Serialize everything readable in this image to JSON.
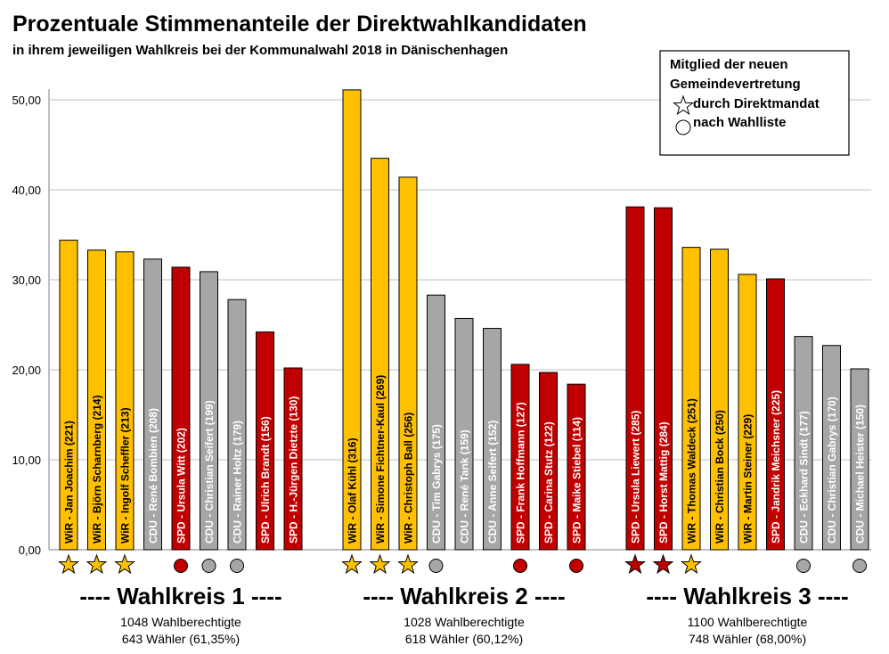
{
  "chart_data": {
    "type": "bar",
    "title": "Prozentuale Stimmenanteile der Direktwahlkandidaten",
    "subtitle": "in ihrem jeweiligen Wahlkreis bei der Kommunalwahl  2018 in Dänischenhagen",
    "ylim": [
      0,
      50
    ],
    "yticks": [
      "0,00",
      "10,00",
      "20,00",
      "30,00",
      "40,00",
      "50,00"
    ],
    "grid": true,
    "legend": {
      "position": "top-right",
      "title_line1": "Mitglied der neuen",
      "title_line2": "Gemeindevertretung",
      "star_label": "durch Direktmandat",
      "circle_label": "nach Wahlliste"
    },
    "party_colors": {
      "WiR": "#FFC000",
      "CDU": "#A6A6A6",
      "SPD": "#C00000"
    },
    "marker_colors": {
      "WiR": "#FFC000",
      "CDU": "#A6A6A6",
      "SPD": "#C00000"
    },
    "districts": [
      {
        "heading": "---- Wahlkreis 1 ----",
        "line1": "1048 Wahlberechtigte",
        "line2": "643 Wähler (61,35%)",
        "bars": [
          {
            "label": "WiR - Jan Joachim (221)",
            "party": "WiR",
            "value": 34.4,
            "marker": "star"
          },
          {
            "label": "WiR - Björn Scharnberg (214)",
            "party": "WiR",
            "value": 33.3,
            "marker": "star"
          },
          {
            "label": "WiR - Ingolf Scheffler (213)",
            "party": "WiR",
            "value": 33.1,
            "marker": "star"
          },
          {
            "label": "CDU - René Bombien (208)",
            "party": "CDU",
            "value": 32.3,
            "marker": "none"
          },
          {
            "label": "SPD - Ursula Witt (202)",
            "party": "SPD",
            "value": 31.4,
            "marker": "circle"
          },
          {
            "label": "CDU - Christian Seifert (199)",
            "party": "CDU",
            "value": 30.9,
            "marker": "circle"
          },
          {
            "label": "CDU - Rainer Holtz (179)",
            "party": "CDU",
            "value": 27.8,
            "marker": "circle"
          },
          {
            "label": "SPD - Ulrich Brandt (156)",
            "party": "SPD",
            "value": 24.2,
            "marker": "none"
          },
          {
            "label": "SPD - H.-Jürgen Dietzte (130)",
            "party": "SPD",
            "value": 20.2,
            "marker": "none"
          }
        ]
      },
      {
        "heading": "---- Wahlkreis 2 ----",
        "line1": "1028 Wahlberechtigte",
        "line2": "618 Wähler (60,12%)",
        "bars": [
          {
            "label": "WiR - Olaf Kühl (316)",
            "party": "WiR",
            "value": 51.1,
            "marker": "star"
          },
          {
            "label": "WiR - Simone Fichtner-Kaul (269)",
            "party": "WiR",
            "value": 43.5,
            "marker": "star"
          },
          {
            "label": "WiR - Christoph Ball (256)",
            "party": "WiR",
            "value": 41.4,
            "marker": "star"
          },
          {
            "label": "CDU - Tim Gabrys (175)",
            "party": "CDU",
            "value": 28.3,
            "marker": "circle"
          },
          {
            "label": "CDU - René Tank (159)",
            "party": "CDU",
            "value": 25.7,
            "marker": "none"
          },
          {
            "label": "CDU - Anne Seifert (152)",
            "party": "CDU",
            "value": 24.6,
            "marker": "none"
          },
          {
            "label": "SPD - Frank Hoffmann (127)",
            "party": "SPD",
            "value": 20.6,
            "marker": "circle"
          },
          {
            "label": "SPD - Carina Stutz (122)",
            "party": "SPD",
            "value": 19.7,
            "marker": "none"
          },
          {
            "label": "SPD - Maike Stiebel (114)",
            "party": "SPD",
            "value": 18.4,
            "marker": "circle"
          }
        ]
      },
      {
        "heading": "---- Wahlkreis 3 ----",
        "line1": "1100 Wahlberechtigte",
        "line2": "748 Wähler (68,00%)",
        "bars": [
          {
            "label": "SPD - Ursula Liewert (285)",
            "party": "SPD",
            "value": 38.1,
            "marker": "star"
          },
          {
            "label": "SPD - Horst Mattig (284)",
            "party": "SPD",
            "value": 38.0,
            "marker": "star"
          },
          {
            "label": "WiR - Thomas Waldeck (251)",
            "party": "WiR",
            "value": 33.6,
            "marker": "star"
          },
          {
            "label": "WiR - Christian Bock (250)",
            "party": "WiR",
            "value": 33.4,
            "marker": "none"
          },
          {
            "label": "WiR - Martin Steiner (229)",
            "party": "WiR",
            "value": 30.6,
            "marker": "none"
          },
          {
            "label": "SPD - Jandrik Meichsner (225)",
            "party": "SPD",
            "value": 30.1,
            "marker": "none"
          },
          {
            "label": "CDU - Eckhard Sindt (177)",
            "party": "CDU",
            "value": 23.7,
            "marker": "circle"
          },
          {
            "label": "CDU - Christian Gabrys (170)",
            "party": "CDU",
            "value": 22.7,
            "marker": "none"
          },
          {
            "label": "CDU - Michael Heister (150)",
            "party": "CDU",
            "value": 20.1,
            "marker": "circle"
          }
        ]
      }
    ]
  }
}
